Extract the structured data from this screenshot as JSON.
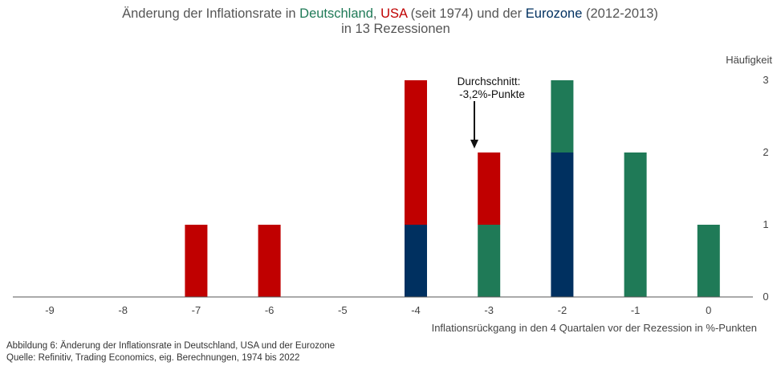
{
  "chart_data": {
    "type": "bar",
    "stacked": true,
    "title_segments": [
      {
        "text": "Änderung der Inflationsrate in ",
        "color": "#555555"
      },
      {
        "text": "Deutschland",
        "color": "#1f7a57"
      },
      {
        "text": ", ",
        "color": "#555555"
      },
      {
        "text": "USA",
        "color": "#c00000"
      },
      {
        "text": " (seit 1974) und der ",
        "color": "#555555"
      },
      {
        "text": "Eurozone",
        "color": "#003060"
      },
      {
        "text": " (2012-2013)",
        "color": "#555555"
      }
    ],
    "title_line2": "in 13 Rezessionen",
    "categories": [
      "-9",
      "-8",
      "-7",
      "-6",
      "-5",
      "-4",
      "-3",
      "-2",
      "-1",
      "0"
    ],
    "series": [
      {
        "key": "eurozone",
        "color": "#003060",
        "values": [
          0,
          0,
          0,
          0,
          0,
          1,
          0,
          2,
          0,
          0
        ]
      },
      {
        "key": "deutschland",
        "color": "#1f7a57",
        "values": [
          0,
          0,
          0,
          0,
          0,
          0,
          1,
          1,
          2,
          1
        ]
      },
      {
        "key": "usa",
        "color": "#c00000",
        "values": [
          0,
          0,
          1,
          1,
          0,
          2,
          1,
          0,
          0,
          0
        ]
      }
    ],
    "xlabel": "Inflationsrückgang in den 4 Quartalen vor der Rezession in %-Punkten",
    "ylabel": "Häufigkeit",
    "y_ticks": [
      "0",
      "1",
      "2",
      "3"
    ],
    "ylim": [
      0,
      3
    ],
    "annotation": {
      "lines": [
        "Durchschnitt:",
        "-3,2%-Punkte"
      ],
      "x_value": -3.2
    }
  },
  "footer": {
    "caption": "Abbildung 6: Änderung der Inflationsrate in Deutschland, USA und der Eurozone",
    "source": "Quelle: Refinitiv,  Trading Economics, eig. Berechnungen, 1974 bis 2022"
  }
}
